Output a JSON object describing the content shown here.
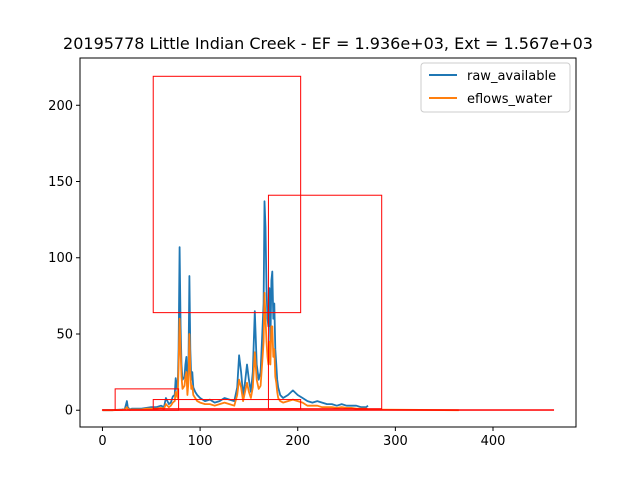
{
  "chart_data": {
    "type": "line",
    "title": "20195778 Little Indian Creek - EF = 1.936e+03, Ext = 1.567e+03",
    "xlabel": "",
    "ylabel": "",
    "xlim": [
      -23,
      485
    ],
    "ylim": [
      -11,
      231
    ],
    "xticks": [
      0,
      100,
      200,
      300,
      400
    ],
    "yticks": [
      0,
      50,
      100,
      150,
      200
    ],
    "grid": false,
    "legend_position": "upper right",
    "colors": {
      "raw_available": "#1f77b4",
      "eflows_water": "#ff7f0e",
      "boxes": "#ff0000"
    },
    "series": [
      {
        "name": "raw_available",
        "x": [
          0,
          10,
          20,
          23,
          25,
          26,
          28,
          30,
          35,
          40,
          45,
          50,
          55,
          60,
          63,
          65,
          68,
          70,
          72,
          74,
          75,
          77,
          78,
          79,
          80,
          81,
          82,
          84,
          85,
          86,
          87,
          88,
          89,
          90,
          91,
          92,
          93,
          95,
          97,
          100,
          105,
          110,
          115,
          120,
          125,
          130,
          135,
          138,
          140,
          142,
          144,
          146,
          148,
          150,
          152,
          154,
          156,
          158,
          160,
          162,
          164,
          165,
          166,
          167,
          168,
          169,
          170,
          171,
          172,
          173,
          174,
          175,
          176,
          177,
          178,
          179,
          180,
          182,
          185,
          190,
          195,
          200,
          205,
          210,
          215,
          220,
          225,
          230,
          235,
          240,
          245,
          250,
          255,
          260,
          265,
          270,
          272
        ],
        "y": [
          0,
          0,
          0.5,
          1,
          6,
          2,
          0.5,
          1,
          1,
          1,
          1.5,
          2,
          2,
          3,
          2,
          8,
          4,
          5,
          9,
          10,
          21,
          12,
          40,
          107,
          55,
          30,
          20,
          22,
          30,
          35,
          15,
          25,
          88,
          40,
          20,
          25,
          15,
          12,
          10,
          8,
          6,
          7,
          5,
          6,
          8,
          7,
          6,
          15,
          36,
          25,
          10,
          18,
          30,
          20,
          12,
          25,
          65,
          30,
          20,
          25,
          55,
          70,
          137,
          120,
          80,
          60,
          55,
          80,
          45,
          85,
          91,
          60,
          70,
          40,
          30,
          20,
          15,
          10,
          8,
          10,
          13,
          10,
          8,
          6,
          5,
          6,
          5,
          4,
          4,
          3,
          4,
          3,
          3,
          3,
          2,
          2,
          3
        ]
      },
      {
        "name": "eflows_water",
        "x": [
          0,
          10,
          20,
          23,
          25,
          26,
          28,
          30,
          35,
          40,
          45,
          50,
          55,
          60,
          63,
          65,
          68,
          70,
          72,
          74,
          75,
          77,
          78,
          79,
          80,
          81,
          82,
          84,
          85,
          86,
          87,
          88,
          89,
          90,
          91,
          92,
          93,
          95,
          97,
          100,
          105,
          110,
          115,
          120,
          125,
          130,
          135,
          138,
          140,
          142,
          144,
          146,
          148,
          150,
          152,
          154,
          156,
          158,
          160,
          162,
          164,
          165,
          166,
          167,
          168,
          169,
          170,
          171,
          172,
          173,
          174,
          175,
          176,
          177,
          178,
          179,
          180,
          182,
          185,
          190,
          195,
          200,
          205,
          210,
          215,
          220,
          225,
          230,
          235,
          240,
          245,
          250,
          255,
          260,
          265,
          270,
          272,
          365
        ],
        "y": [
          0,
          0,
          0.3,
          0.5,
          2,
          1,
          0.3,
          0.5,
          0.5,
          0.5,
          1,
          1,
          1,
          1.5,
          1,
          4,
          2,
          3,
          5,
          6,
          12,
          8,
          28,
          60,
          38,
          22,
          14,
          16,
          22,
          25,
          10,
          18,
          50,
          25,
          14,
          16,
          10,
          8,
          6,
          5,
          4,
          4,
          3,
          4,
          5,
          4,
          3,
          10,
          20,
          15,
          6,
          12,
          18,
          12,
          8,
          15,
          38,
          20,
          14,
          16,
          35,
          45,
          77,
          60,
          45,
          35,
          30,
          45,
          30,
          55,
          55,
          35,
          40,
          22,
          18,
          12,
          8,
          6,
          5,
          6,
          7,
          6,
          5,
          3,
          3,
          3,
          2,
          2,
          2,
          1.5,
          2,
          1.5,
          1.5,
          1,
          1,
          1,
          0.5,
          0
        ]
      }
    ],
    "boxes": [
      {
        "x0": 52,
        "x1": 203,
        "y0": 64,
        "y1": 219
      },
      {
        "x0": 170,
        "x1": 286,
        "y0": 1,
        "y1": 141
      },
      {
        "x0": 13,
        "x1": 78,
        "y0": 0,
        "y1": 14
      },
      {
        "x0": 52,
        "x1": 203,
        "y0": 1,
        "y1": 7
      },
      {
        "x0": 0,
        "x1": 462,
        "y0": 0,
        "y1": 0.3
      }
    ]
  }
}
